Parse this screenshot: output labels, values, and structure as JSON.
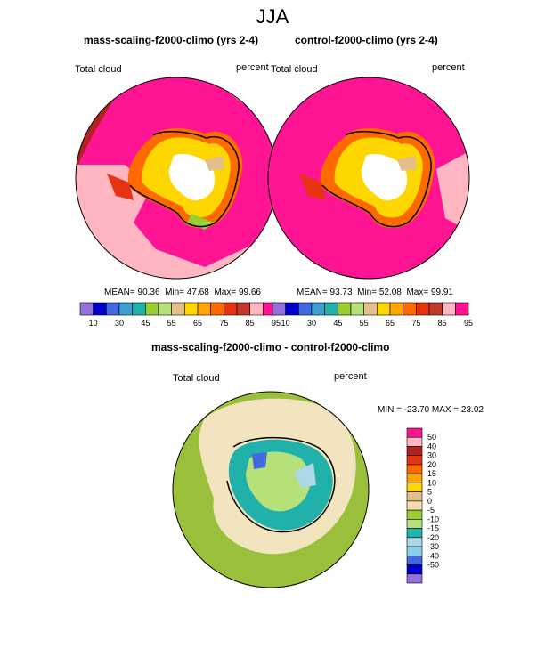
{
  "title": "JJA",
  "panels": [
    {
      "title": "mass-scaling-f2000-climo (yrs 2-4)",
      "variable": "Total cloud",
      "units": "percent",
      "stats": {
        "mean_label": "MEAN=",
        "mean": "90.36",
        "min_label": "Min=",
        "min": "47.68",
        "max_label": "Max=",
        "max": "99.66"
      }
    },
    {
      "title": "control-f2000-climo (yrs 2-4)",
      "variable": "Total cloud",
      "units": "percent",
      "stats": {
        "mean_label": "MEAN=",
        "mean": "93.73",
        "min_label": "Min=",
        "min": "52.08",
        "max_label": "Max=",
        "max": "99.91"
      }
    },
    {
      "title": "mass-scaling-f2000-climo - control-f2000-climo",
      "variable": "Total cloud",
      "units": "percent",
      "stats_text": "MIN = -23.70 MAX =  23.02"
    }
  ],
  "colorbar_top": {
    "colors": [
      "#9370db",
      "#0000cd",
      "#4169e1",
      "#3ca0d2",
      "#20b2aa",
      "#9acd32",
      "#b5e07a",
      "#e2bf8c",
      "#ffd700",
      "#ffa500",
      "#ff6a00",
      "#e63412",
      "#c0392b",
      "#ffb6c1",
      "#ff1493"
    ],
    "labels": [
      "10",
      "30",
      "45",
      "55",
      "65",
      "75",
      "85",
      "95"
    ],
    "label_positions": [
      1,
      3,
      5,
      7,
      9,
      11,
      13,
      15
    ]
  },
  "colorbar_diff": {
    "colors": [
      "#ff1493",
      "#ffb6c1",
      "#b22222",
      "#e63412",
      "#ff6a00",
      "#ffa500",
      "#ffd700",
      "#e2bf8c",
      "#f5deb3",
      "#9acd32",
      "#b5e07a",
      "#20b2aa",
      "#add8e6",
      "#87ceeb",
      "#4169e1",
      "#0000cd",
      "#9370db"
    ],
    "labels": [
      "50",
      "40",
      "30",
      "20",
      "15",
      "10",
      "5",
      "0",
      "-5",
      "-10",
      "-15",
      "-20",
      "-30",
      "-40",
      "-50"
    ]
  },
  "colors": {
    "ocean_pink": "#ff1493",
    "light_pink": "#ffb6c1",
    "diff_green": "#9abf3a",
    "diff_tan": "#f3e4c0"
  }
}
